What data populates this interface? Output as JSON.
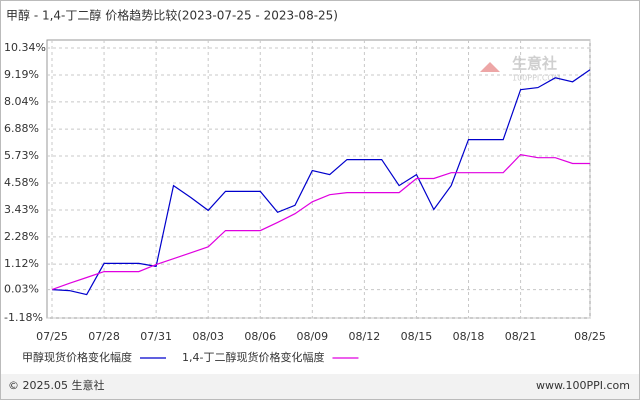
{
  "chart_data": {
    "type": "line",
    "title": "甲醇 - 1,4-丁二醇 价格趋势比较(2023-07-25 - 2023-08-25)",
    "x": [
      "07/25",
      "07/26",
      "07/27",
      "07/28",
      "07/30",
      "07/31",
      "08/01",
      "08/02",
      "08/03",
      "08/04",
      "08/06",
      "08/07",
      "08/08",
      "08/09",
      "08/10",
      "08/11",
      "08/13",
      "08/14",
      "08/15",
      "08/16",
      "08/17",
      "08/18",
      "08/20",
      "08/21",
      "08/22",
      "08/23",
      "08/24",
      "08/25"
    ],
    "series": [
      {
        "name": "甲醇现货价格变化幅度",
        "color": "#0000cc",
        "values": [
          0.03,
          -0.01,
          -0.18,
          1.15,
          1.15,
          1.02,
          4.47,
          3.96,
          3.41,
          4.22,
          4.22,
          3.33,
          3.63,
          5.11,
          4.94,
          5.58,
          5.58,
          4.47,
          4.94,
          3.45,
          4.47,
          6.43,
          6.43,
          8.56,
          8.65,
          9.07,
          8.9,
          9.41
        ]
      },
      {
        "name": "1,4-丁二醇现货价格变化幅度",
        "color": "#e000e0",
        "values": [
          0.03,
          0.3,
          0.55,
          0.8,
          0.8,
          1.1,
          1.35,
          1.6,
          1.86,
          2.55,
          2.55,
          2.9,
          3.27,
          3.78,
          4.08,
          4.17,
          4.17,
          4.17,
          4.77,
          4.77,
          5.02,
          5.02,
          5.02,
          5.79,
          5.66,
          5.66,
          5.41,
          5.41
        ]
      }
    ],
    "xticks": [
      "07/25",
      "07/28",
      "07/31",
      "08/03",
      "08/06",
      "08/09",
      "08/12",
      "08/15",
      "08/18",
      "08/21",
      "08/25"
    ],
    "ylim": [
      -1.18,
      10.34
    ],
    "yticks": [
      {
        "value": -1.18,
        "label": "-1.18%"
      },
      {
        "value": 0.03,
        "label": "0.03%"
      },
      {
        "value": 1.12,
        "label": "1.12%"
      },
      {
        "value": 2.28,
        "label": "2.28%"
      },
      {
        "value": 3.43,
        "label": "3.43%"
      },
      {
        "value": 4.58,
        "label": "4.58%"
      },
      {
        "value": 5.73,
        "label": "5.73%"
      },
      {
        "value": 6.88,
        "label": "6.88%"
      },
      {
        "value": 8.04,
        "label": "8.04%"
      },
      {
        "value": 9.19,
        "label": "9.19%"
      },
      {
        "value": 10.34,
        "label": "10.34%"
      }
    ],
    "grid": true,
    "watermark": [
      "生意社",
      "100PPI.COM"
    ],
    "footer": {
      "left": "© 2025.05 生意社",
      "right": "www.100PPI.com"
    }
  }
}
